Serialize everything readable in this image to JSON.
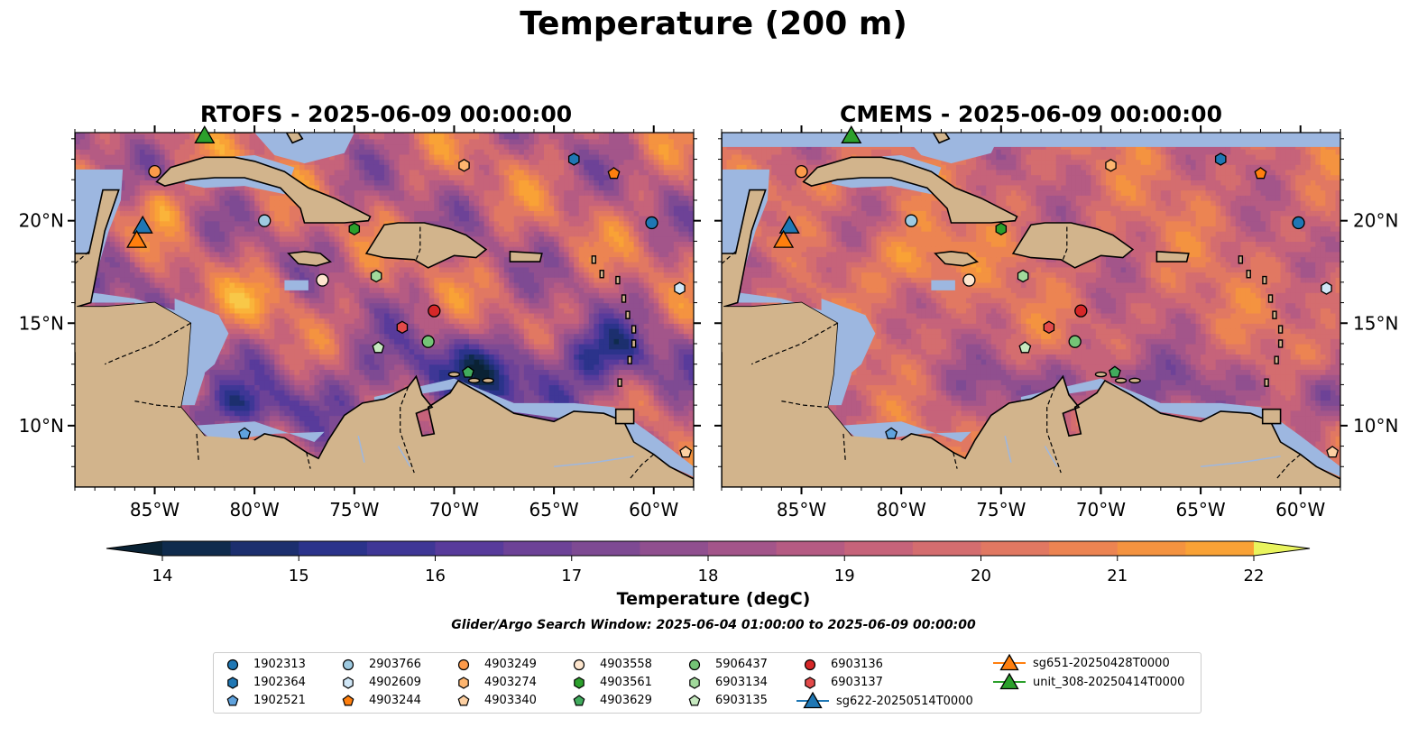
{
  "figure": {
    "suptitle": "Temperature (200 m)",
    "search_window": "Glider/Argo Search Window: 2025-06-04 01:00:00 to 2025-06-09 00:00:00"
  },
  "panels": [
    {
      "title": "RTOFS - 2025-06-09 00:00:00",
      "model": "RTOFS"
    },
    {
      "title": "CMEMS - 2025-06-09 00:00:00",
      "model": "CMEMS"
    }
  ],
  "map_extent": {
    "lon": [
      -89,
      -58
    ],
    "lat": [
      7,
      24.3
    ]
  },
  "axes": {
    "x_ticks": [
      -85,
      -80,
      -75,
      -70,
      -65,
      -60
    ],
    "x_tick_labels": [
      "85°W",
      "80°W",
      "75°W",
      "70°W",
      "65°W",
      "60°W"
    ],
    "y_ticks": [
      10,
      15,
      20
    ],
    "y_tick_labels": [
      "10°N",
      "15°N",
      "20°N"
    ]
  },
  "colorbar": {
    "label": "Temperature (degC)",
    "min": 14,
    "max": 22,
    "step": 0.5,
    "ticks": [
      "14",
      "15",
      "16",
      "17",
      "18",
      "19",
      "20",
      "21",
      "22"
    ],
    "extend": "both",
    "colors": [
      "#0a2234",
      "#0f2b4d",
      "#1c2f6e",
      "#2b338b",
      "#3f3796",
      "#583b9b",
      "#6d4297",
      "#7e4a93",
      "#904f8f",
      "#a3558a",
      "#b55b83",
      "#c6637a",
      "#d46d6f",
      "#e17862",
      "#ec8452",
      "#f49340",
      "#f9a236",
      "#fab43a",
      "#f8c848",
      "#f3dd55",
      "#e9f45e"
    ]
  },
  "colors": {
    "land": "#d2b48c",
    "shelf": "#9db7e0",
    "deep_land_shadow": "#0a2234",
    "masked_top": "#9db7e0"
  },
  "legend": {
    "entries": [
      {
        "label": "1902313",
        "marker": "circle",
        "color": "#1f77b4"
      },
      {
        "label": "1902364",
        "marker": "hexagon",
        "color": "#1f77b4"
      },
      {
        "label": "1902521",
        "marker": "pentagon",
        "color": "#5fa2dd"
      },
      {
        "label": "2903766",
        "marker": "circle",
        "color": "#9ecae1"
      },
      {
        "label": "4902609",
        "marker": "hexagon",
        "color": "#d0e7f7"
      },
      {
        "label": "4903244",
        "marker": "pentagon",
        "color": "#ff7f0e"
      },
      {
        "label": "4903249",
        "marker": "circle",
        "color": "#fd9a4a"
      },
      {
        "label": "4903274",
        "marker": "hexagon",
        "color": "#fdb56f"
      },
      {
        "label": "4903340",
        "marker": "pentagon",
        "color": "#fdd0a2"
      },
      {
        "label": "4903558",
        "marker": "circle",
        "color": "#fee6ce"
      },
      {
        "label": "4903561",
        "marker": "hexagon",
        "color": "#2ca02c"
      },
      {
        "label": "4903629",
        "marker": "pentagon",
        "color": "#41ab5d"
      },
      {
        "label": "5906437",
        "marker": "circle",
        "color": "#74c476"
      },
      {
        "label": "6903134",
        "marker": "hexagon",
        "color": "#a1d99b"
      },
      {
        "label": "6903135",
        "marker": "pentagon",
        "color": "#c7e9c0"
      },
      {
        "label": "6903136",
        "marker": "circle",
        "color": "#d62728"
      },
      {
        "label": "6903137",
        "marker": "hexagon",
        "color": "#e34a4a"
      },
      {
        "label": "sg622-20250514T0000",
        "marker": "triangle",
        "color": "#1f77b4"
      },
      {
        "label": "sg651-20250428T0000",
        "marker": "triangle",
        "color": "#ff7f0e"
      },
      {
        "label": "unit_308-20250414T0000",
        "marker": "triangle",
        "color": "#2ca02c"
      }
    ]
  },
  "floats": [
    {
      "id": "1902313",
      "lon": -60.1,
      "lat": 19.9
    },
    {
      "id": "1902364",
      "lon": -64.0,
      "lat": 23.0
    },
    {
      "id": "1902521",
      "lon": -80.5,
      "lat": 9.6
    },
    {
      "id": "2903766",
      "lon": -79.5,
      "lat": 20.0
    },
    {
      "id": "4902609",
      "lon": -58.7,
      "lat": 16.7
    },
    {
      "id": "4903244",
      "lon": -62.0,
      "lat": 22.3
    },
    {
      "id": "4903249",
      "lon": -85.0,
      "lat": 22.4
    },
    {
      "id": "4903274",
      "lon": -69.5,
      "lat": 22.7
    },
    {
      "id": "4903340",
      "lon": -58.4,
      "lat": 8.7
    },
    {
      "id": "4903558",
      "lon": -76.6,
      "lat": 17.1
    },
    {
      "id": "4903561",
      "lon": -75.0,
      "lat": 19.6
    },
    {
      "id": "4903629",
      "lon": -69.3,
      "lat": 12.6
    },
    {
      "id": "5906437",
      "lon": -71.3,
      "lat": 14.1
    },
    {
      "id": "6903134",
      "lon": -73.9,
      "lat": 17.3
    },
    {
      "id": "6903135",
      "lon": -73.8,
      "lat": 13.8
    },
    {
      "id": "6903136",
      "lon": -71.0,
      "lat": 15.6
    },
    {
      "id": "6903137",
      "lon": -72.6,
      "lat": 14.8
    },
    {
      "id": "sg622-20250514T0000",
      "lon": -85.6,
      "lat": 19.8
    },
    {
      "id": "sg651-20250428T0000",
      "lon": -85.9,
      "lat": 19.1
    },
    {
      "id": "unit_308-20250414T0000",
      "lon": -82.5,
      "lat": 24.2
    }
  ]
}
